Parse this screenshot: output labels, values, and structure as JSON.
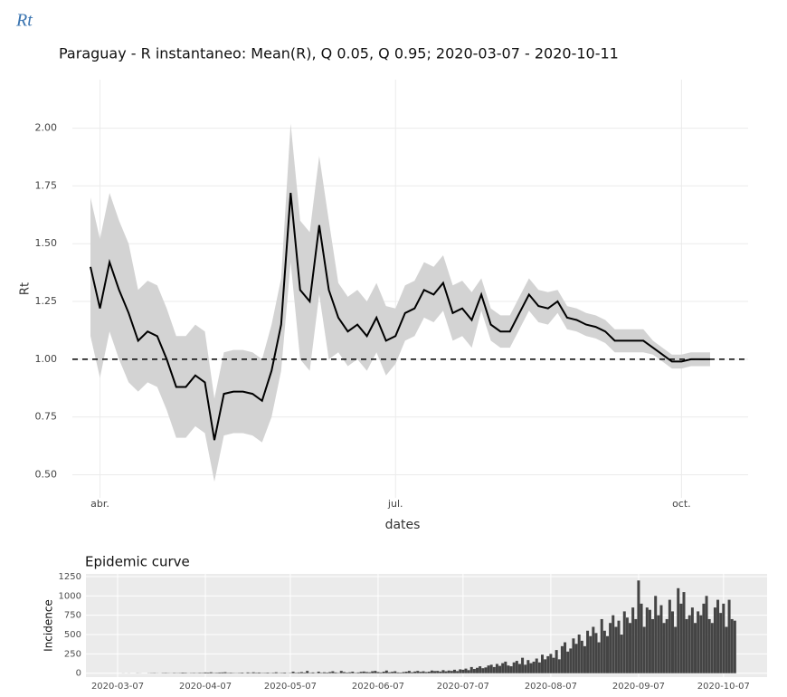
{
  "heading": "Rt",
  "chart_data": [
    {
      "type": "line",
      "title": "Paraguay - R instantaneo: Mean(R), Q 0.05, Q 0.95;  2020-03-07 - 2020-10-11",
      "xlabel": "dates",
      "ylabel": "Rt",
      "categories": [
        null,
        "abr.",
        null,
        null,
        null,
        null,
        null,
        null,
        null,
        null,
        null,
        null,
        null,
        null,
        null,
        null,
        null,
        null,
        null,
        null,
        null,
        null,
        null,
        null,
        null,
        null,
        null,
        null,
        null,
        null,
        null,
        null,
        "jul.",
        null,
        null,
        null,
        null,
        null,
        null,
        null,
        null,
        null,
        null,
        null,
        null,
        null,
        null,
        null,
        null,
        null,
        null,
        null,
        null,
        null,
        null,
        null,
        null,
        null,
        null,
        null,
        null,
        null,
        "oct.",
        null,
        null,
        null
      ],
      "values": [
        1.4,
        1.22,
        1.42,
        1.3,
        1.2,
        1.08,
        1.12,
        1.1,
        1.0,
        0.88,
        0.88,
        0.93,
        0.9,
        0.65,
        0.85,
        0.86,
        0.86,
        0.85,
        0.82,
        0.95,
        1.15,
        1.72,
        1.3,
        1.25,
        1.58,
        1.3,
        1.18,
        1.12,
        1.15,
        1.1,
        1.18,
        1.08,
        1.1,
        1.2,
        1.22,
        1.3,
        1.28,
        1.33,
        1.2,
        1.22,
        1.17,
        1.28,
        1.15,
        1.12,
        1.12,
        1.2,
        1.28,
        1.23,
        1.22,
        1.25,
        1.18,
        1.17,
        1.15,
        1.14,
        1.12,
        1.08,
        1.08,
        1.08,
        1.08,
        1.05,
        1.02,
        0.99,
        0.99,
        1.0,
        1.0,
        1.0
      ],
      "upper": [
        1.7,
        1.52,
        1.72,
        1.6,
        1.5,
        1.3,
        1.34,
        1.32,
        1.22,
        1.1,
        1.1,
        1.15,
        1.12,
        0.83,
        1.03,
        1.04,
        1.04,
        1.03,
        1.0,
        1.15,
        1.35,
        2.02,
        1.6,
        1.55,
        1.88,
        1.6,
        1.33,
        1.27,
        1.3,
        1.25,
        1.33,
        1.23,
        1.22,
        1.32,
        1.34,
        1.42,
        1.4,
        1.45,
        1.32,
        1.34,
        1.29,
        1.35,
        1.22,
        1.19,
        1.19,
        1.27,
        1.35,
        1.3,
        1.29,
        1.3,
        1.23,
        1.22,
        1.2,
        1.19,
        1.17,
        1.13,
        1.13,
        1.13,
        1.13,
        1.08,
        1.05,
        1.02,
        1.02,
        1.03,
        1.03,
        1.03
      ],
      "lower": [
        1.1,
        0.92,
        1.12,
        1.0,
        0.9,
        0.86,
        0.9,
        0.88,
        0.78,
        0.66,
        0.66,
        0.71,
        0.68,
        0.47,
        0.67,
        0.68,
        0.68,
        0.67,
        0.64,
        0.75,
        0.95,
        1.42,
        1.0,
        0.95,
        1.28,
        1.0,
        1.03,
        0.97,
        1.0,
        0.95,
        1.03,
        0.93,
        0.98,
        1.08,
        1.1,
        1.18,
        1.16,
        1.21,
        1.08,
        1.1,
        1.05,
        1.21,
        1.08,
        1.05,
        1.05,
        1.13,
        1.21,
        1.16,
        1.15,
        1.2,
        1.13,
        1.12,
        1.1,
        1.09,
        1.07,
        1.03,
        1.03,
        1.03,
        1.03,
        1.02,
        0.99,
        0.96,
        0.96,
        0.97,
        0.97,
        0.97
      ],
      "color": "#000000",
      "band_color": "#d3d3d3",
      "hline": 1,
      "ylim": [
        0.4,
        2.21
      ],
      "yticks": [
        {
          "value": 0.5,
          "label": "0.50"
        },
        {
          "value": 0.75,
          "label": "0.75"
        },
        {
          "value": 1,
          "label": "1.00"
        },
        {
          "value": 1.25,
          "label": "1.25"
        },
        {
          "value": 1.5,
          "label": "1.50"
        },
        {
          "value": 1.75,
          "label": "1.75"
        },
        {
          "value": 2,
          "label": "2.00"
        }
      ],
      "grid": true
    },
    {
      "type": "bar",
      "title": "Epidemic curve",
      "ylabel": "Incidence",
      "categories": [
        "2020-03-07",
        null,
        null,
        null,
        null,
        null,
        null,
        null,
        null,
        null,
        null,
        null,
        null,
        null,
        null,
        null,
        null,
        null,
        null,
        null,
        null,
        null,
        null,
        null,
        null,
        null,
        null,
        null,
        null,
        null,
        null,
        "2020-04-07",
        null,
        null,
        null,
        null,
        null,
        null,
        null,
        null,
        null,
        null,
        null,
        null,
        null,
        null,
        null,
        null,
        null,
        null,
        null,
        null,
        null,
        null,
        null,
        null,
        null,
        null,
        null,
        null,
        null,
        "2020-05-07",
        null,
        null,
        null,
        null,
        null,
        null,
        null,
        null,
        null,
        null,
        null,
        null,
        null,
        null,
        null,
        null,
        null,
        null,
        null,
        null,
        null,
        null,
        null,
        null,
        null,
        null,
        null,
        null,
        null,
        null,
        "2020-06-07",
        null,
        null,
        null,
        null,
        null,
        null,
        null,
        null,
        null,
        null,
        null,
        null,
        null,
        null,
        null,
        null,
        null,
        null,
        null,
        null,
        null,
        null,
        null,
        null,
        null,
        null,
        null,
        null,
        null,
        "2020-07-07",
        null,
        null,
        null,
        null,
        null,
        null,
        null,
        null,
        null,
        null,
        null,
        null,
        null,
        null,
        null,
        null,
        null,
        null,
        null,
        null,
        null,
        null,
        null,
        null,
        null,
        null,
        null,
        null,
        null,
        null,
        "2020-08-07",
        null,
        null,
        null,
        null,
        null,
        null,
        null,
        null,
        null,
        null,
        null,
        null,
        null,
        null,
        null,
        null,
        null,
        null,
        null,
        null,
        null,
        null,
        null,
        null,
        null,
        null,
        null,
        null,
        null,
        null,
        "2020-09-07",
        null,
        null,
        null,
        null,
        null,
        null,
        null,
        null,
        null,
        null,
        null,
        null,
        null,
        null,
        null,
        null,
        null,
        null,
        null,
        null,
        null,
        null,
        null,
        null,
        null,
        null,
        null,
        null,
        null,
        "2020-10-07",
        null,
        null,
        null,
        null
      ],
      "values": [
        0,
        0,
        1,
        0,
        1,
        0,
        0,
        2,
        1,
        0,
        0,
        2,
        3,
        4,
        2,
        1,
        4,
        5,
        3,
        2,
        5,
        3,
        4,
        8,
        6,
        2,
        4,
        5,
        3,
        6,
        5,
        10,
        8,
        12,
        4,
        6,
        9,
        10,
        13,
        5,
        7,
        4,
        3,
        5,
        8,
        2,
        10,
        4,
        12,
        6,
        9,
        4,
        5,
        8,
        3,
        6,
        12,
        3,
        5,
        8,
        2,
        4,
        20,
        6,
        10,
        15,
        8,
        30,
        5,
        10,
        3,
        20,
        6,
        12,
        8,
        15,
        25,
        10,
        5,
        30,
        15,
        8,
        12,
        20,
        5,
        10,
        18,
        22,
        15,
        12,
        25,
        30,
        15,
        10,
        20,
        35,
        12,
        18,
        25,
        10,
        8,
        15,
        20,
        30,
        12,
        22,
        30,
        18,
        25,
        15,
        20,
        35,
        28,
        30,
        22,
        40,
        25,
        35,
        30,
        45,
        28,
        50,
        45,
        60,
        40,
        80,
        55,
        70,
        90,
        65,
        75,
        100,
        110,
        80,
        120,
        95,
        130,
        150,
        100,
        90,
        140,
        160,
        120,
        200,
        110,
        170,
        130,
        150,
        190,
        140,
        240,
        180,
        220,
        250,
        200,
        300,
        180,
        350,
        400,
        280,
        320,
        450,
        380,
        500,
        420,
        350,
        550,
        480,
        600,
        520,
        400,
        700,
        550,
        480,
        650,
        750,
        600,
        680,
        500,
        800,
        720,
        650,
        850,
        700,
        1200,
        900,
        600,
        850,
        820,
        700,
        1000,
        750,
        880,
        650,
        700,
        950,
        800,
        600,
        1100,
        900,
        1050,
        700,
        750,
        850,
        650,
        800,
        750,
        900,
        1000,
        700,
        650,
        850,
        950,
        780,
        900,
        600,
        950,
        700,
        680
      ],
      "color": "#444444",
      "ylim": [
        -50,
        1285
      ],
      "yticks": [
        0,
        250,
        500,
        750,
        1000,
        1250
      ],
      "grid": true
    }
  ]
}
